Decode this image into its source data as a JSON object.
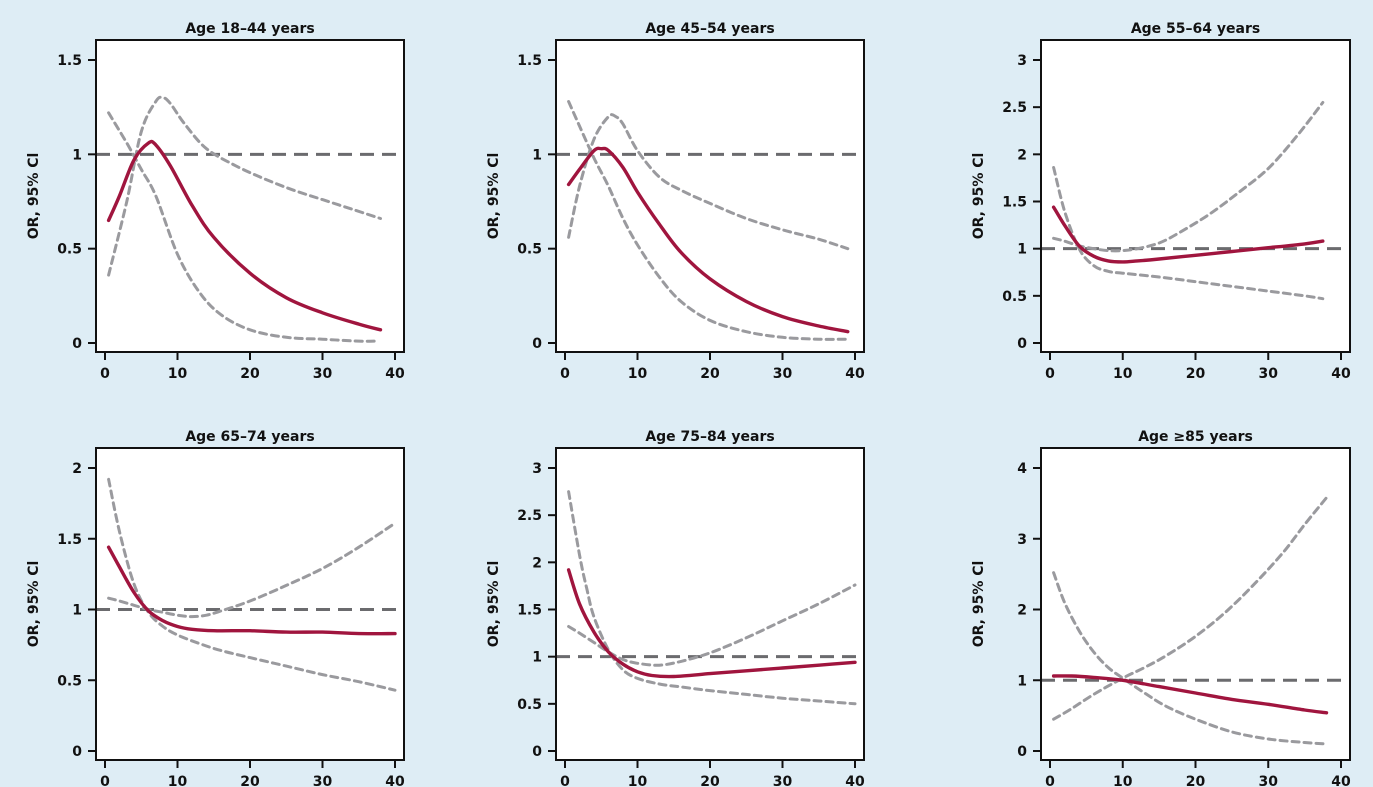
{
  "colors": {
    "background": "#deedf5",
    "plot_background": "#ffffff",
    "or_line": "#a0153e",
    "ci_line": "#9a9a9e",
    "reference_line": "#6b6b6e",
    "axis": "#111111"
  },
  "chart_data": [
    {
      "type": "line",
      "title": "Age 18–44 years",
      "ylabel": "OR, 95% Cl",
      "xlabel": "",
      "xlim": [
        0,
        40
      ],
      "ylim": [
        0,
        1.5
      ],
      "xticks": [
        0,
        10,
        20,
        30,
        40
      ],
      "xtick_labels": [
        "0",
        "10",
        "20",
        "30",
        "40"
      ],
      "yticks": [
        0,
        0.5,
        1,
        1.5
      ],
      "ytick_labels": [
        "0",
        "0.5",
        "1",
        "1.5"
      ],
      "reference_y": 1,
      "series": [
        {
          "role": "estimate",
          "x": [
            0.5,
            2,
            4,
            6,
            7,
            9,
            12,
            15,
            20,
            25,
            30,
            35,
            38
          ],
          "y": [
            0.65,
            0.78,
            0.97,
            1.06,
            1.05,
            0.94,
            0.73,
            0.56,
            0.37,
            0.24,
            0.16,
            0.1,
            0.07
          ]
        },
        {
          "role": "upper_ci",
          "x": [
            0.5,
            3,
            5,
            7,
            8,
            9,
            11,
            14,
            18,
            22,
            26,
            30,
            34,
            38
          ],
          "y": [
            0.36,
            0.75,
            1.12,
            1.28,
            1.3,
            1.27,
            1.16,
            1.03,
            0.94,
            0.87,
            0.81,
            0.76,
            0.71,
            0.66
          ]
        },
        {
          "role": "lower_ci",
          "x": [
            0.5,
            3,
            5,
            7,
            10,
            13,
            16,
            20,
            25,
            30,
            35,
            37.5
          ],
          "y": [
            1.22,
            1.06,
            0.92,
            0.78,
            0.47,
            0.27,
            0.15,
            0.07,
            0.03,
            0.02,
            0.01,
            0.01
          ]
        }
      ]
    },
    {
      "type": "line",
      "title": "Age 45–54 years",
      "ylabel": "OR, 95% Cl",
      "xlabel": "",
      "xlim": [
        0,
        40
      ],
      "ylim": [
        0,
        1.5
      ],
      "xticks": [
        0,
        10,
        20,
        30,
        40
      ],
      "xtick_labels": [
        "0",
        "10",
        "20",
        "30",
        "40"
      ],
      "yticks": [
        0,
        0.5,
        1,
        1.5
      ],
      "ytick_labels": [
        "0",
        "0.5",
        "1",
        "1.5"
      ],
      "reference_y": 1,
      "series": [
        {
          "role": "estimate",
          "x": [
            0.5,
            2,
            4,
            5,
            6,
            8,
            10,
            13,
            16,
            20,
            25,
            30,
            35,
            39
          ],
          "y": [
            0.84,
            0.92,
            1.02,
            1.03,
            1.02,
            0.93,
            0.8,
            0.63,
            0.48,
            0.34,
            0.22,
            0.14,
            0.09,
            0.06
          ]
        },
        {
          "role": "upper_ci",
          "x": [
            0.5,
            2,
            4,
            6,
            7,
            8,
            10,
            13,
            16,
            20,
            25,
            30,
            35,
            39
          ],
          "y": [
            0.56,
            0.83,
            1.08,
            1.2,
            1.2,
            1.16,
            1.02,
            0.88,
            0.81,
            0.74,
            0.66,
            0.6,
            0.55,
            0.5
          ]
        },
        {
          "role": "lower_ci",
          "x": [
            0.5,
            2,
            4,
            6,
            8,
            10,
            13,
            16,
            20,
            25,
            30,
            35,
            39
          ],
          "y": [
            1.28,
            1.15,
            0.98,
            0.83,
            0.66,
            0.52,
            0.35,
            0.22,
            0.12,
            0.06,
            0.03,
            0.02,
            0.02
          ]
        }
      ]
    },
    {
      "type": "line",
      "title": "Age 55–64 years",
      "ylabel": "OR, 95% Cl",
      "xlabel": "",
      "xlim": [
        0,
        40
      ],
      "ylim": [
        0,
        3
      ],
      "xticks": [
        0,
        10,
        20,
        30,
        40
      ],
      "xtick_labels": [
        "0",
        "10",
        "20",
        "30",
        "40"
      ],
      "yticks": [
        0,
        0.5,
        1,
        1.5,
        2,
        2.5,
        3
      ],
      "ytick_labels": [
        "0",
        "0.5",
        "1",
        "1.5",
        "2",
        "2.5",
        "3"
      ],
      "reference_y": 1,
      "series": [
        {
          "role": "estimate",
          "x": [
            0.5,
            2,
            4,
            6,
            8,
            10,
            12,
            15,
            20,
            25,
            30,
            35,
            37.5
          ],
          "y": [
            1.44,
            1.25,
            1.03,
            0.92,
            0.87,
            0.86,
            0.87,
            0.89,
            0.93,
            0.97,
            1.01,
            1.05,
            1.08
          ]
        },
        {
          "role": "upper_ci",
          "x": [
            0.5,
            2,
            4,
            6,
            8,
            10,
            12,
            15,
            18,
            22,
            26,
            30,
            34,
            37.5
          ],
          "y": [
            1.11,
            1.08,
            1.03,
            1.0,
            0.98,
            0.98,
            1.0,
            1.06,
            1.18,
            1.37,
            1.6,
            1.85,
            2.2,
            2.55
          ]
        },
        {
          "role": "lower_ci",
          "x": [
            0.5,
            2,
            4,
            6,
            8,
            10,
            15,
            20,
            25,
            30,
            35,
            37.5
          ],
          "y": [
            1.86,
            1.4,
            1.0,
            0.82,
            0.76,
            0.74,
            0.7,
            0.65,
            0.6,
            0.55,
            0.5,
            0.47
          ]
        }
      ]
    },
    {
      "type": "line",
      "title": "Age 65–74 years",
      "ylabel": "OR, 95% Cl",
      "xlabel": "",
      "xlim": [
        0,
        40
      ],
      "ylim": [
        0,
        2
      ],
      "xticks": [
        0,
        10,
        20,
        30,
        40
      ],
      "xtick_labels": [
        "0",
        "10",
        "20",
        "30",
        "40"
      ],
      "yticks": [
        0,
        0.5,
        1,
        1.5,
        2
      ],
      "ytick_labels": [
        "0",
        "0.5",
        "1",
        "1.5",
        "2"
      ],
      "reference_y": 1,
      "series": [
        {
          "role": "estimate",
          "x": [
            0.5,
            2,
            4,
            6,
            8,
            10,
            12,
            15,
            20,
            25,
            30,
            35,
            40
          ],
          "y": [
            1.44,
            1.3,
            1.12,
            0.99,
            0.92,
            0.88,
            0.86,
            0.85,
            0.85,
            0.84,
            0.84,
            0.83,
            0.83
          ]
        },
        {
          "role": "upper_ci",
          "x": [
            0.5,
            2,
            4,
            6,
            8,
            10,
            12,
            14,
            16,
            20,
            25,
            30,
            35,
            40
          ],
          "y": [
            1.08,
            1.06,
            1.03,
            1.0,
            0.98,
            0.96,
            0.95,
            0.96,
            0.99,
            1.06,
            1.17,
            1.29,
            1.44,
            1.61
          ]
        },
        {
          "role": "lower_ci",
          "x": [
            0.5,
            2,
            4,
            6,
            8,
            10,
            13,
            16,
            20,
            25,
            30,
            35,
            40
          ],
          "y": [
            1.92,
            1.55,
            1.18,
            0.98,
            0.88,
            0.82,
            0.76,
            0.71,
            0.66,
            0.6,
            0.54,
            0.49,
            0.43
          ]
        }
      ]
    },
    {
      "type": "line",
      "title": "Age 75–84 years",
      "ylabel": "OR, 95% Cl",
      "xlabel": "",
      "xlim": [
        0,
        40
      ],
      "ylim": [
        0,
        3
      ],
      "xticks": [
        0,
        10,
        20,
        30,
        40
      ],
      "xtick_labels": [
        "0",
        "10",
        "20",
        "30",
        "40"
      ],
      "yticks": [
        0,
        0.5,
        1,
        1.5,
        2,
        2.5,
        3
      ],
      "ytick_labels": [
        "0",
        "0.5",
        "1",
        "1.5",
        "2",
        "2.5",
        "3"
      ],
      "reference_y": 1,
      "series": [
        {
          "role": "estimate",
          "x": [
            0.5,
            2,
            4,
            6,
            8,
            10,
            12,
            15,
            20,
            25,
            30,
            35,
            40
          ],
          "y": [
            1.92,
            1.56,
            1.26,
            1.05,
            0.92,
            0.84,
            0.8,
            0.79,
            0.82,
            0.85,
            0.88,
            0.91,
            0.94
          ]
        },
        {
          "role": "upper_ci",
          "x": [
            0.5,
            2,
            4,
            6,
            8,
            10,
            13,
            16,
            20,
            25,
            30,
            35,
            40
          ],
          "y": [
            1.32,
            1.25,
            1.15,
            1.05,
            0.97,
            0.93,
            0.91,
            0.95,
            1.04,
            1.2,
            1.38,
            1.56,
            1.76
          ]
        },
        {
          "role": "lower_ci",
          "x": [
            0.5,
            2,
            3,
            4,
            6,
            8,
            10,
            13,
            16,
            20,
            25,
            30,
            35,
            40
          ],
          "y": [
            2.75,
            2.08,
            1.72,
            1.42,
            1.07,
            0.86,
            0.77,
            0.71,
            0.68,
            0.64,
            0.6,
            0.56,
            0.53,
            0.5
          ]
        }
      ]
    },
    {
      "type": "line",
      "title": "Age ≥85 years",
      "ylabel": "OR, 95% Cl",
      "xlabel": "",
      "xlim": [
        0,
        40
      ],
      "ylim": [
        0,
        4
      ],
      "xticks": [
        0,
        10,
        20,
        30,
        40
      ],
      "xtick_labels": [
        "0",
        "10",
        "20",
        "30",
        "40"
      ],
      "yticks": [
        0,
        1,
        2,
        3,
        4
      ],
      "ytick_labels": [
        "0",
        "1",
        "2",
        "3",
        "4"
      ],
      "reference_y": 1,
      "series": [
        {
          "role": "estimate",
          "x": [
            0.5,
            3,
            6,
            10,
            15,
            20,
            25,
            30,
            35,
            38
          ],
          "y": [
            1.06,
            1.06,
            1.04,
            1.0,
            0.91,
            0.82,
            0.73,
            0.66,
            0.58,
            0.54
          ]
        },
        {
          "role": "upper_ci",
          "x": [
            0.5,
            3,
            6,
            10,
            13,
            16,
            20,
            24,
            28,
            32,
            35,
            38
          ],
          "y": [
            0.45,
            0.6,
            0.8,
            1.03,
            1.18,
            1.35,
            1.62,
            1.95,
            2.35,
            2.8,
            3.2,
            3.58
          ]
        },
        {
          "role": "lower_ci",
          "x": [
            0.5,
            2,
            4,
            6,
            8,
            10,
            13,
            16,
            20,
            25,
            30,
            35,
            38
          ],
          "y": [
            2.52,
            2.1,
            1.7,
            1.4,
            1.18,
            1.03,
            0.82,
            0.63,
            0.45,
            0.27,
            0.17,
            0.12,
            0.1
          ]
        }
      ]
    }
  ]
}
